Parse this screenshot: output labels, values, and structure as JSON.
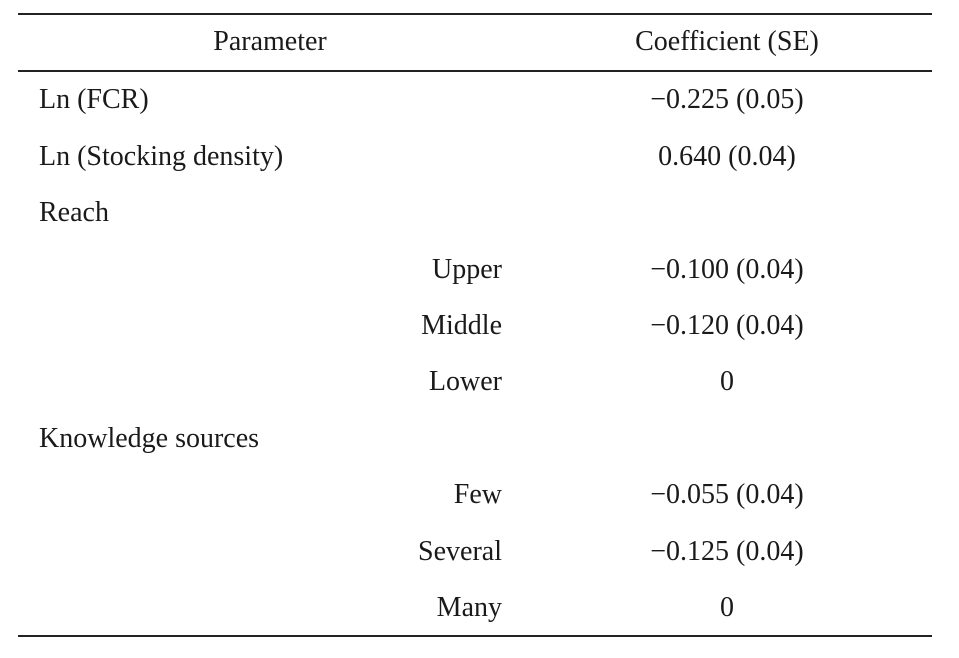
{
  "table": {
    "headers": {
      "parameter": "Parameter",
      "coefficient": "Coefficient (SE)"
    },
    "rows": [
      {
        "label": "Ln (FCR)",
        "sublabel": "",
        "value": "−0.225 (0.05)"
      },
      {
        "label": "Ln (Stocking density)",
        "sublabel": "",
        "value": "0.640 (0.04)"
      },
      {
        "label": "Reach",
        "sublabel": "",
        "value": ""
      },
      {
        "label": "",
        "sublabel": "Upper",
        "value": "−0.100 (0.04)"
      },
      {
        "label": "",
        "sublabel": "Middle",
        "value": "−0.120 (0.04)"
      },
      {
        "label": "",
        "sublabel": "Lower",
        "value": "0"
      },
      {
        "label": "Knowledge sources",
        "sublabel": "",
        "value": ""
      },
      {
        "label": "",
        "sublabel": "Few",
        "value": "−0.055 (0.04)"
      },
      {
        "label": "",
        "sublabel": "Several",
        "value": "−0.125 (0.04)"
      },
      {
        "label": "",
        "sublabel": "Many",
        "value": "0"
      }
    ]
  }
}
